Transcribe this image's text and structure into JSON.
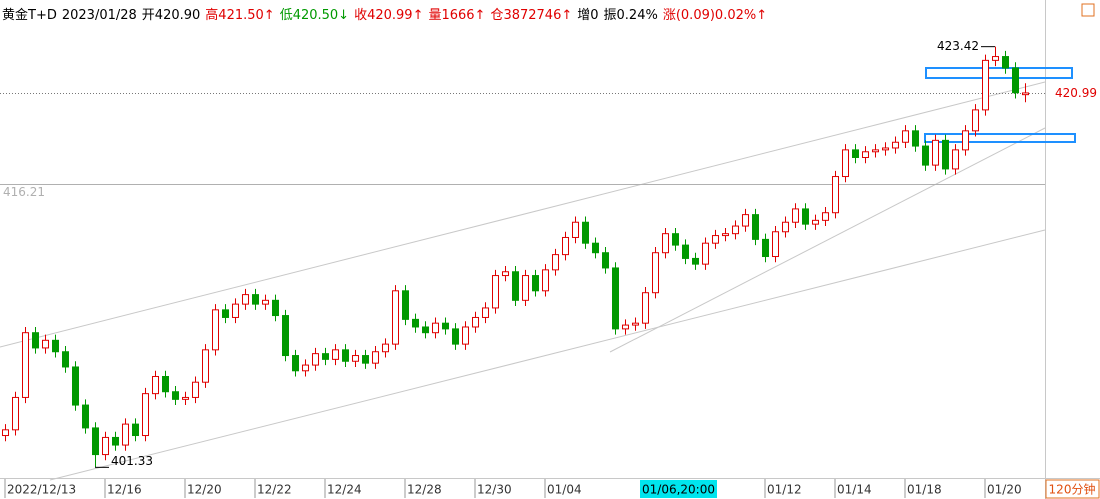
{
  "chart_data": {
    "type": "candlestick",
    "header": [
      {
        "text": "黄金T+D",
        "color": "#000000"
      },
      {
        "text": "2023/01/28",
        "color": "#000000"
      },
      {
        "text": "开420.90",
        "color": "#000000"
      },
      {
        "text": "高421.50↑",
        "color": "#e00000"
      },
      {
        "text": "低420.50↓",
        "color": "#009900"
      },
      {
        "text": "收420.99↑",
        "color": "#e00000"
      },
      {
        "text": "量1666↑",
        "color": "#e00000"
      },
      {
        "text": "仓3872746↑",
        "color": "#e00000"
      },
      {
        "text": "增0",
        "color": "#000000"
      },
      {
        "text": "振0.24%",
        "color": "#000000"
      },
      {
        "text": "涨(0.09)0.02%↑",
        "color": "#e00000"
      }
    ],
    "period_label": "120分钟",
    "up_color": "#e00000",
    "down_color": "#009900",
    "ylim": [
      400.77,
      425.87
    ],
    "categories": [
      "2022/12/13",
      null,
      null,
      null,
      null,
      null,
      null,
      null,
      null,
      null,
      "12/16",
      null,
      null,
      null,
      null,
      null,
      null,
      null,
      "12/20",
      null,
      null,
      null,
      null,
      null,
      null,
      "12/22",
      null,
      null,
      null,
      null,
      null,
      null,
      "12/24",
      null,
      null,
      null,
      null,
      null,
      null,
      null,
      "12/28",
      null,
      null,
      null,
      null,
      null,
      null,
      "12/30",
      null,
      null,
      null,
      null,
      null,
      null,
      "01/04",
      null,
      null,
      null,
      null,
      null,
      null,
      null,
      null,
      null,
      null,
      null,
      null,
      null,
      null,
      null,
      null,
      null,
      null,
      null,
      null,
      null,
      "01/12",
      null,
      null,
      null,
      null,
      null,
      null,
      "01/14",
      null,
      null,
      null,
      null,
      null,
      null,
      "01/18",
      null,
      null,
      null,
      null,
      null,
      null,
      null,
      "01/20",
      null,
      null,
      null,
      null
    ],
    "cursor": {
      "label": "01/06,20:00",
      "x": 64
    },
    "open": [
      403.0,
      403.3,
      405.0,
      408.4,
      407.6,
      408.0,
      407.4,
      406.6,
      404.6,
      403.4,
      402.0,
      402.9,
      402.5,
      403.6,
      403.0,
      405.2,
      406.1,
      405.3,
      404.9,
      405.0,
      405.8,
      407.5,
      409.6,
      409.2,
      409.9,
      410.4,
      409.9,
      410.1,
      409.3,
      407.2,
      406.4,
      406.7,
      407.3,
      407.0,
      407.5,
      406.9,
      407.2,
      406.8,
      407.4,
      407.8,
      410.6,
      409.1,
      408.7,
      408.4,
      408.9,
      408.6,
      407.8,
      408.7,
      409.2,
      409.7,
      411.4,
      411.6,
      410.1,
      411.4,
      410.6,
      411.7,
      412.5,
      413.4,
      414.2,
      413.1,
      412.6,
      411.8,
      408.6,
      408.8,
      408.9,
      410.5,
      412.6,
      413.6,
      413.0,
      412.3,
      412.0,
      413.1,
      413.5,
      413.6,
      414.0,
      414.6,
      413.3,
      412.4,
      413.7,
      414.2,
      414.9,
      414.1,
      414.3,
      414.7,
      416.6,
      418.0,
      417.6,
      417.9,
      418.0,
      418.1,
      418.4,
      419.0,
      418.2,
      417.2,
      418.5,
      417.0,
      418.0,
      419.0,
      420.1,
      422.7,
      422.9,
      422.3,
      420.9
    ],
    "high": [
      403.6,
      405.3,
      408.7,
      408.7,
      408.3,
      408.3,
      407.7,
      406.9,
      404.9,
      403.7,
      403.2,
      403.2,
      403.9,
      403.9,
      405.5,
      406.4,
      406.4,
      405.6,
      405.3,
      406.1,
      407.8,
      409.9,
      409.9,
      410.2,
      410.7,
      410.7,
      410.4,
      410.4,
      409.6,
      407.5,
      407.0,
      407.6,
      407.6,
      407.8,
      407.8,
      407.5,
      407.5,
      407.7,
      408.1,
      410.9,
      410.9,
      409.4,
      409.0,
      409.2,
      409.2,
      408.9,
      409.0,
      409.5,
      410.0,
      411.7,
      411.9,
      411.9,
      411.7,
      411.7,
      412.0,
      412.8,
      413.7,
      414.5,
      414.5,
      413.4,
      412.9,
      412.1,
      409.1,
      409.2,
      410.8,
      412.9,
      413.9,
      413.9,
      413.3,
      412.6,
      413.4,
      413.8,
      413.9,
      414.3,
      414.9,
      414.9,
      413.6,
      414.0,
      414.5,
      415.2,
      415.2,
      414.6,
      415.0,
      416.9,
      418.3,
      418.3,
      418.2,
      418.3,
      418.4,
      418.7,
      419.3,
      419.3,
      418.5,
      418.8,
      418.8,
      418.3,
      419.3,
      420.4,
      423.0,
      423.42,
      423.2,
      422.6,
      421.5
    ],
    "low": [
      402.7,
      403.0,
      404.7,
      407.3,
      407.3,
      407.1,
      406.3,
      404.3,
      403.1,
      401.33,
      401.7,
      402.2,
      402.2,
      402.7,
      402.7,
      404.9,
      405.0,
      404.6,
      404.6,
      404.7,
      405.5,
      407.2,
      408.9,
      408.9,
      409.6,
      409.6,
      409.6,
      409.0,
      406.9,
      406.1,
      406.1,
      406.4,
      406.7,
      406.7,
      406.6,
      406.6,
      406.5,
      406.5,
      407.1,
      407.5,
      408.8,
      408.4,
      408.1,
      408.1,
      408.3,
      407.5,
      407.5,
      408.4,
      408.9,
      409.4,
      411.1,
      409.8,
      409.8,
      410.3,
      410.3,
      411.4,
      412.2,
      413.1,
      412.8,
      412.3,
      411.5,
      408.3,
      408.3,
      408.5,
      408.6,
      410.2,
      412.3,
      412.7,
      412.0,
      411.7,
      411.7,
      412.8,
      413.2,
      413.3,
      413.7,
      413.0,
      412.1,
      412.1,
      413.4,
      413.9,
      413.8,
      413.8,
      414.0,
      414.4,
      416.3,
      417.3,
      417.3,
      417.6,
      417.7,
      417.8,
      418.1,
      417.9,
      416.9,
      416.9,
      416.7,
      416.7,
      417.7,
      418.7,
      419.8,
      422.4,
      422.0,
      420.7,
      420.5
    ],
    "close": [
      403.3,
      405.0,
      408.4,
      407.6,
      408.0,
      407.4,
      406.6,
      404.6,
      403.4,
      402.0,
      402.9,
      402.5,
      403.6,
      403.0,
      405.2,
      406.1,
      405.3,
      404.9,
      405.0,
      405.8,
      407.5,
      409.6,
      409.2,
      409.9,
      410.4,
      409.9,
      410.1,
      409.3,
      407.2,
      406.4,
      406.7,
      407.3,
      407.0,
      407.5,
      406.9,
      407.2,
      406.8,
      407.4,
      407.8,
      410.6,
      409.1,
      408.7,
      408.4,
      408.9,
      408.6,
      407.8,
      408.7,
      409.2,
      409.7,
      411.4,
      411.6,
      410.1,
      411.4,
      410.6,
      411.7,
      412.5,
      413.4,
      414.2,
      413.1,
      412.6,
      411.8,
      408.6,
      408.8,
      408.9,
      410.5,
      412.6,
      413.6,
      413.0,
      412.3,
      412.0,
      413.1,
      413.5,
      413.6,
      414.0,
      414.6,
      413.3,
      412.4,
      413.7,
      414.2,
      414.9,
      414.1,
      414.3,
      414.7,
      416.6,
      418.0,
      417.6,
      417.9,
      418.0,
      418.1,
      418.4,
      419.0,
      418.2,
      417.2,
      418.5,
      417.0,
      418.0,
      419.0,
      420.1,
      422.7,
      422.9,
      422.3,
      421.0,
      420.99
    ],
    "extremes": [
      {
        "value": 423.42,
        "x": 99
      },
      {
        "value": 401.33,
        "x": 9
      }
    ],
    "reference_lines": [
      {
        "value": 420.99,
        "side": "right",
        "color": "#e00000",
        "style": "dotted"
      },
      {
        "value": 416.21,
        "side": "left",
        "color": "#b0b0b0",
        "style": "solid"
      }
    ]
  }
}
